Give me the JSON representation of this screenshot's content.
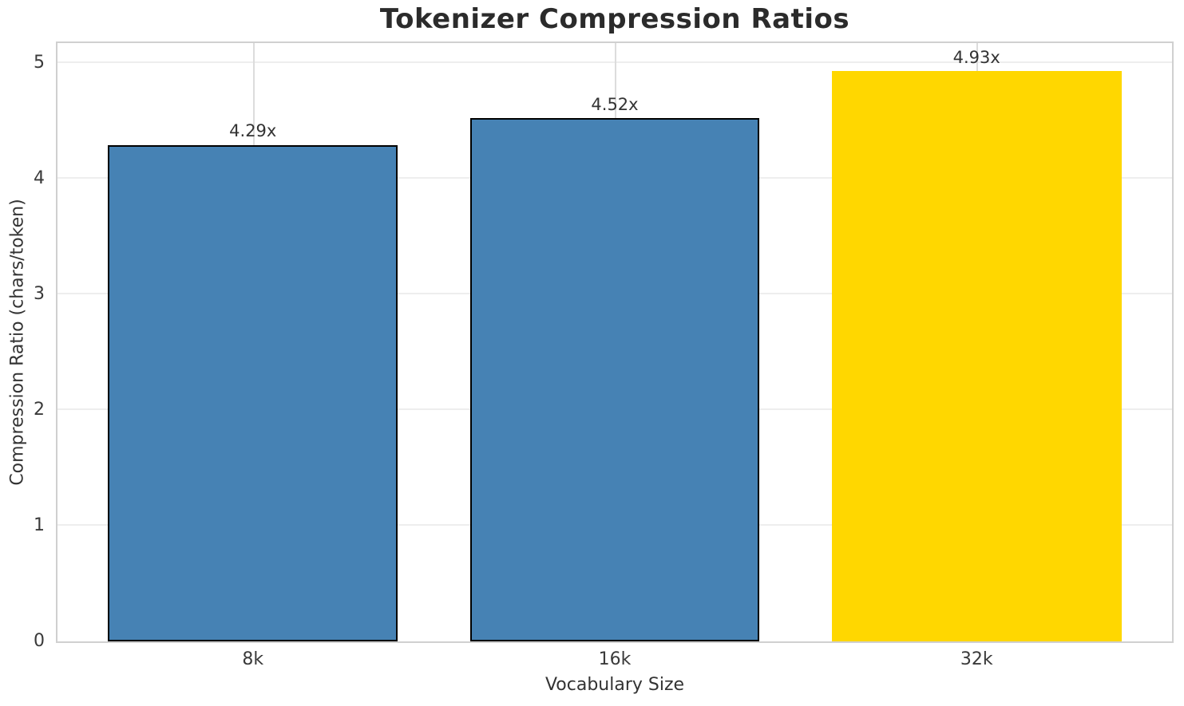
{
  "chart_data": {
    "type": "bar",
    "title": "Tokenizer Compression Ratios",
    "xlabel": "Vocabulary Size",
    "ylabel": "Compression Ratio (chars/token)",
    "categories": [
      "8k",
      "16k",
      "32k"
    ],
    "values": [
      4.29,
      4.52,
      4.93
    ],
    "value_labels": [
      "4.29x",
      "4.52x",
      "4.93x"
    ],
    "bar_colors": [
      "#4682b4",
      "#4682b4",
      "#ffd700"
    ],
    "bar_edge_colors": [
      "#000000",
      "#000000",
      "transparent"
    ],
    "yticks": [
      0,
      1,
      2,
      3,
      4,
      5
    ],
    "ylim": [
      0,
      5.17
    ],
    "xlim": [
      -0.54,
      2.54
    ],
    "bar_width": 0.8,
    "grid": true,
    "legend": "none",
    "styling": {
      "background": "#ffffff",
      "hgrid_color": "#eeeeee",
      "vgrid_color": "#dcdcdc",
      "spine_color": "#d0d0d0",
      "title_color": "#2b2b2b",
      "text_color": "#333333",
      "tick_color": "#3a3a3a"
    }
  }
}
